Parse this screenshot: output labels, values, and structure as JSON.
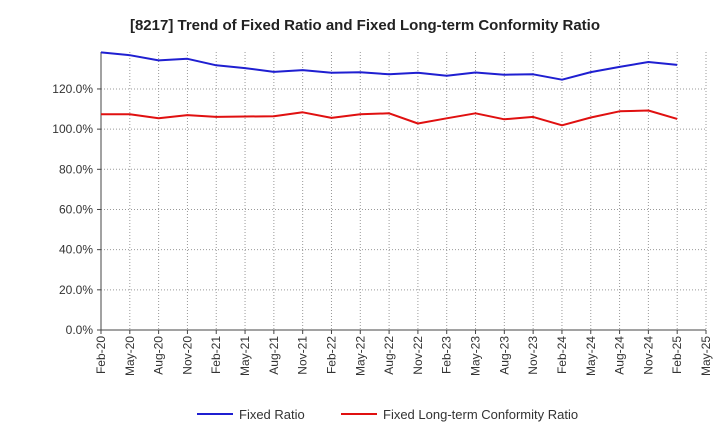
{
  "chart_data": {
    "type": "line",
    "title": "[8217]  Trend of Fixed Ratio and Fixed Long-term Conformity Ratio",
    "xlabel": "",
    "ylabel": "",
    "ylim": [
      0,
      0.1384
    ],
    "y_ticks": [
      "0.0%",
      "20.0%",
      "40.0%",
      "60.0%",
      "80.0%",
      "100.0%",
      "120.0%"
    ],
    "x": [
      "Feb-20",
      "May-20",
      "Aug-20",
      "Nov-20",
      "Feb-21",
      "May-21",
      "Aug-21",
      "Nov-21",
      "Feb-22",
      "May-22",
      "Aug-22",
      "Nov-22",
      "Feb-23",
      "May-23",
      "Aug-23",
      "Nov-23",
      "Feb-24",
      "May-24",
      "Aug-24",
      "Nov-24",
      "Feb-25"
    ],
    "x_ticks": [
      "Feb-20",
      "May-20",
      "Aug-20",
      "Nov-20",
      "Feb-21",
      "May-21",
      "Aug-21",
      "Nov-21",
      "Feb-22",
      "May-22",
      "Aug-22",
      "Nov-22",
      "Feb-23",
      "May-23",
      "Aug-23",
      "Nov-23",
      "Feb-24",
      "May-24",
      "Aug-24",
      "Nov-24",
      "Feb-25",
      "May-25"
    ],
    "series": [
      {
        "name": "Fixed Ratio",
        "color": "#1f1fd1",
        "values": [
          138.2,
          136.8,
          134.2,
          135.0,
          131.8,
          130.4,
          128.5,
          129.4,
          128.1,
          128.3,
          127.3,
          128.1,
          126.6,
          128.2,
          127.1,
          127.3,
          124.6,
          128.4,
          131.0,
          133.4,
          132.0
        ]
      },
      {
        "name": "Fixed Long-term Conformity Ratio",
        "color": "#e01010",
        "values": [
          107.4,
          107.4,
          105.4,
          107.0,
          106.1,
          106.3,
          106.4,
          108.4,
          105.6,
          107.4,
          107.9,
          102.8,
          105.4,
          107.9,
          104.9,
          106.1,
          101.9,
          105.8,
          108.9,
          109.3,
          105.1
        ]
      }
    ],
    "grid": true,
    "legend": "bottom"
  }
}
